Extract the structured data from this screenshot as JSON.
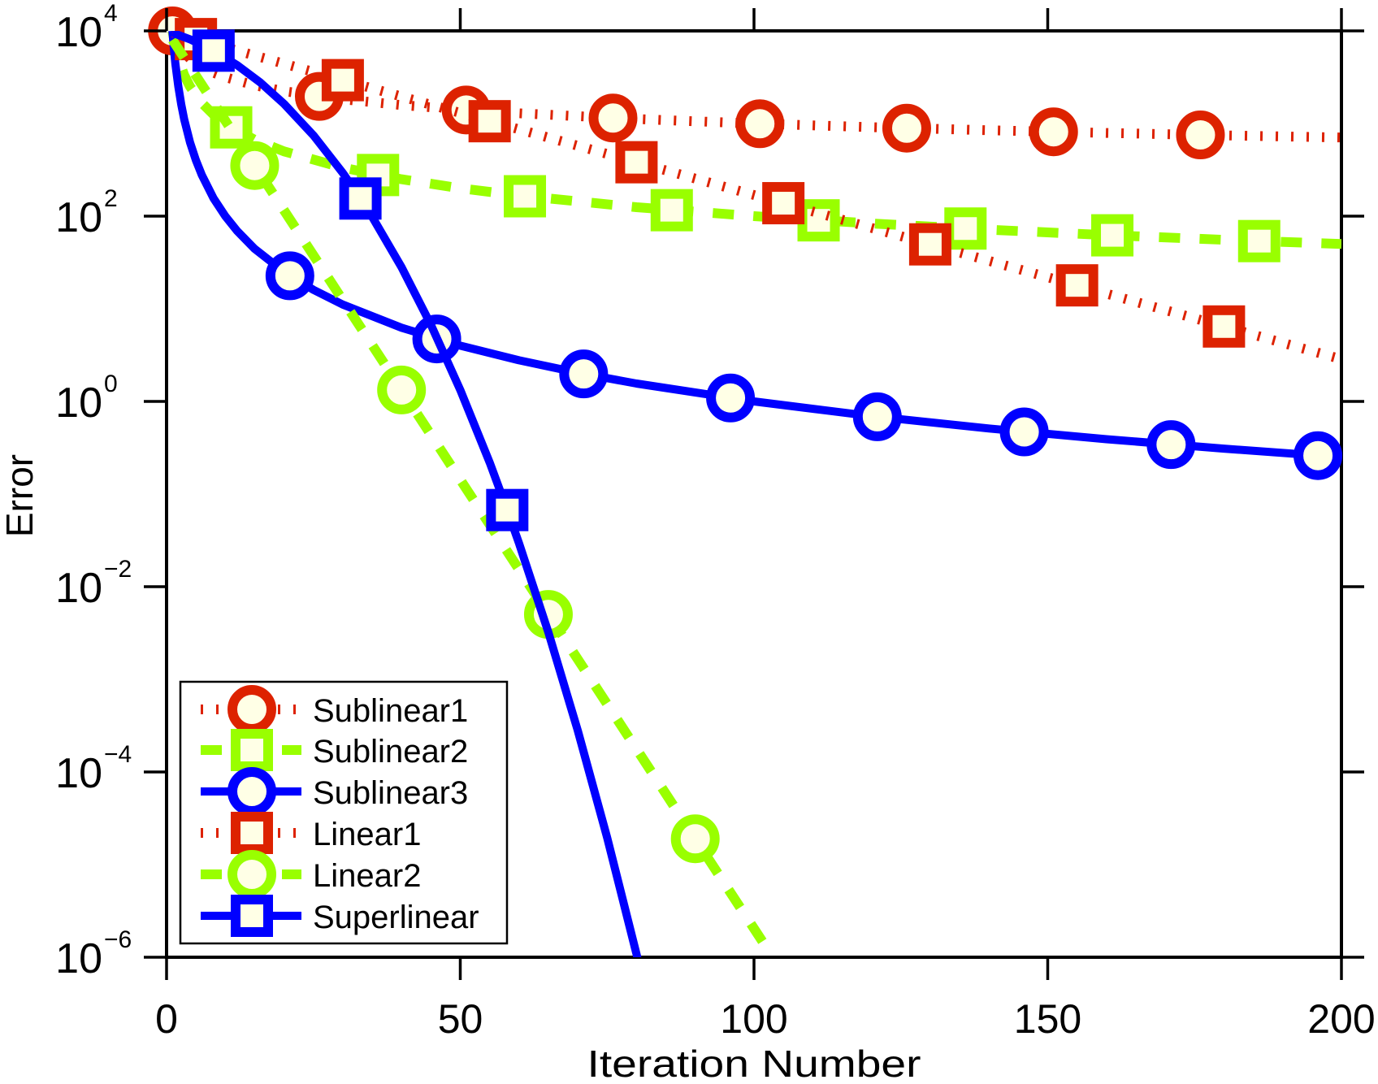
{
  "chart_data": {
    "type": "line",
    "title": "",
    "xlabel": "Iteration Number",
    "ylabel": "Error",
    "xlim": [
      0,
      200
    ],
    "ylim": [
      1e-06,
      10000
    ],
    "yscale": "log",
    "grid": false,
    "legend_position": "bottom-left",
    "marker_fill": "#FFFFE6",
    "x_ticks": [
      {
        "value": 0,
        "label": "0"
      },
      {
        "value": 50,
        "label": "50"
      },
      {
        "value": 100,
        "label": "100"
      },
      {
        "value": 150,
        "label": "150"
      },
      {
        "value": 200,
        "label": "200"
      }
    ],
    "y_ticks": [
      {
        "value": 10000,
        "base": "10",
        "exponent": "4"
      },
      {
        "value": 100,
        "base": "10",
        "exponent": "2"
      },
      {
        "value": 1,
        "base": "10",
        "exponent": "0"
      },
      {
        "value": 0.01,
        "base": "10",
        "exponent": "−2"
      },
      {
        "value": 0.0001,
        "base": "10",
        "exponent": "−4"
      },
      {
        "value": 1e-06,
        "base": "10",
        "exponent": "−6"
      }
    ],
    "series": [
      {
        "name": "Sublinear1",
        "color": "#DD2200",
        "line_style": "dotted",
        "marker": "circle",
        "line": [
          [
            1,
            10000
          ],
          [
            2,
            7071
          ],
          [
            3,
            5774
          ],
          [
            4,
            5000
          ],
          [
            6,
            4082
          ],
          [
            8,
            3536
          ],
          [
            10,
            3162
          ],
          [
            15,
            2582
          ],
          [
            20,
            2236
          ],
          [
            30,
            1826
          ],
          [
            40,
            1581
          ],
          [
            50,
            1414
          ],
          [
            60,
            1291
          ],
          [
            80,
            1118
          ],
          [
            100,
            1000
          ],
          [
            120,
            913
          ],
          [
            140,
            845
          ],
          [
            160,
            791
          ],
          [
            180,
            745
          ],
          [
            200,
            707
          ]
        ],
        "markers": [
          [
            1,
            10000
          ],
          [
            26,
            1961
          ],
          [
            51,
            1400
          ],
          [
            76,
            1147
          ],
          [
            101,
            995
          ],
          [
            126,
            891
          ],
          [
            151,
            814
          ],
          [
            176,
            754
          ]
        ]
      },
      {
        "name": "Sublinear2",
        "color": "#99FF00",
        "line_style": "dashed",
        "marker": "square",
        "line": [
          [
            1,
            10000
          ],
          [
            2,
            5000
          ],
          [
            3,
            3333
          ],
          [
            4,
            2500
          ],
          [
            6,
            1667
          ],
          [
            8,
            1250
          ],
          [
            10,
            1000
          ],
          [
            15,
            667
          ],
          [
            20,
            500
          ],
          [
            30,
            333
          ],
          [
            40,
            250
          ],
          [
            50,
            200
          ],
          [
            60,
            167
          ],
          [
            80,
            125
          ],
          [
            100,
            100
          ],
          [
            120,
            83.3
          ],
          [
            140,
            71.4
          ],
          [
            160,
            62.5
          ],
          [
            180,
            55.6
          ],
          [
            200,
            50
          ]
        ],
        "markers": [
          [
            11,
            909
          ],
          [
            36,
            278
          ],
          [
            61,
            164
          ],
          [
            86,
            116
          ],
          [
            111,
            90.1
          ],
          [
            136,
            73.5
          ],
          [
            161,
            62.1
          ],
          [
            186,
            53.8
          ]
        ]
      },
      {
        "name": "Sublinear3",
        "color": "#0000FF",
        "line_style": "solid",
        "marker": "circle",
        "line": [
          [
            1,
            10000
          ],
          [
            1.2,
            6944
          ],
          [
            1.5,
            4444
          ],
          [
            2,
            2500
          ],
          [
            2.5,
            1600
          ],
          [
            3,
            1111
          ],
          [
            4,
            625
          ],
          [
            5,
            400
          ],
          [
            6,
            278
          ],
          [
            8,
            156
          ],
          [
            10,
            100
          ],
          [
            12,
            69.4
          ],
          [
            15,
            44.4
          ],
          [
            20,
            25
          ],
          [
            25,
            16
          ],
          [
            30,
            11.1
          ],
          [
            40,
            6.25
          ],
          [
            50,
            4
          ],
          [
            60,
            2.78
          ],
          [
            70,
            2.04
          ],
          [
            80,
            1.56
          ],
          [
            100,
            1
          ],
          [
            120,
            0.694
          ],
          [
            140,
            0.51
          ],
          [
            160,
            0.391
          ],
          [
            180,
            0.309
          ],
          [
            200,
            0.25
          ]
        ],
        "markers": [
          [
            21,
            22.7
          ],
          [
            46,
            4.73
          ],
          [
            71,
            1.98
          ],
          [
            96,
            1.09
          ],
          [
            121,
            0.683
          ],
          [
            146,
            0.469
          ],
          [
            171,
            0.342
          ],
          [
            196,
            0.26
          ]
        ]
      },
      {
        "name": "Linear1",
        "color": "#DD2200",
        "line_style": "dotted",
        "marker": "square",
        "line": [
          [
            1,
            9600
          ],
          [
            50,
            1299
          ],
          [
            100,
            169
          ],
          [
            150,
            21.9
          ],
          [
            200,
            2.85
          ]
        ],
        "markers": [
          [
            5,
            8154
          ],
          [
            30,
            2939
          ],
          [
            55,
            1059
          ],
          [
            80,
            382
          ],
          [
            105,
            138
          ],
          [
            130,
            49.6
          ],
          [
            155,
            17.9
          ],
          [
            180,
            6.44
          ]
        ]
      },
      {
        "name": "Linear2",
        "color": "#99FF00",
        "line_style": "dashed",
        "marker": "circle",
        "line": [
          [
            1,
            8000
          ],
          [
            50,
            0.143
          ],
          [
            103.2,
            1e-06
          ]
        ],
        "markers": [
          [
            15,
            352
          ],
          [
            40,
            1.33
          ],
          [
            65,
            0.00502
          ],
          [
            90,
            1.9e-05
          ]
        ]
      },
      {
        "name": "Superlinear",
        "color": "#0000FF",
        "line_style": "solid",
        "marker": "square",
        "line": [
          [
            1,
            9552
          ],
          [
            4,
            8110
          ],
          [
            8,
            6116
          ],
          [
            12,
            4274
          ],
          [
            16,
            2754
          ],
          [
            20,
            1629
          ],
          [
            25,
            745
          ],
          [
            30,
            293
          ],
          [
            33,
            155
          ],
          [
            35,
            98.6
          ],
          [
            40,
            28.1
          ],
          [
            45,
            6.7
          ],
          [
            50,
            1.33
          ],
          [
            55,
            0.219
          ],
          [
            58,
            0.0672
          ],
          [
            60,
            0.0294
          ],
          [
            65,
            0.0032
          ],
          [
            70,
            0.00028
          ],
          [
            75,
            1.95e-05
          ],
          [
            80,
            1.08e-06
          ],
          [
            81,
            5.9e-07
          ]
        ],
        "markers": [
          [
            8,
            6116
          ],
          [
            33,
            155
          ],
          [
            58,
            0.0672
          ]
        ]
      }
    ]
  }
}
